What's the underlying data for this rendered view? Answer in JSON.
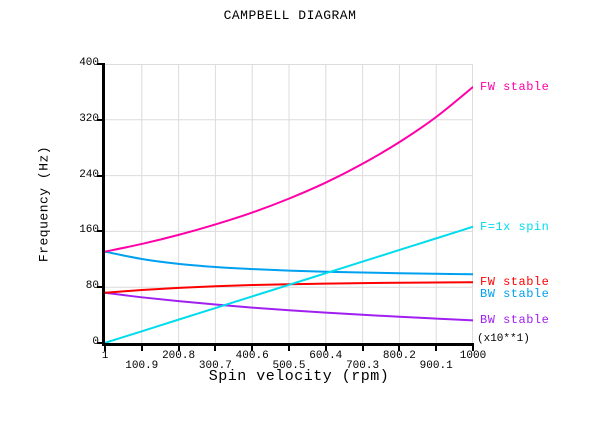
{
  "title": "CAMPBELL DIAGRAM",
  "chart_data": {
    "type": "line",
    "title": "CAMPBELL DIAGRAM",
    "xlabel": "Spin velocity (rpm)",
    "ylabel": "Frequency (Hz)",
    "x_multiplier_note": "(x10**1)",
    "xlim": [
      1,
      1000
    ],
    "ylim": [
      0,
      400
    ],
    "grid": true,
    "grid_color": "#dcdcdc",
    "legend_position": "right",
    "x_ticks": [
      "1",
      "100.9",
      "200.8",
      "300.7",
      "400.6",
      "500.5",
      "600.4",
      "700.3",
      "800.2",
      "900.1",
      "1000"
    ],
    "y_ticks": [
      "0",
      "80",
      "160",
      "240",
      "320",
      "400"
    ],
    "x": [
      1,
      100.9,
      200.8,
      300.7,
      400.6,
      500.5,
      600.4,
      700.3,
      800.2,
      900.1,
      1000
    ],
    "series": [
      {
        "name": "FW stable",
        "color": "#ff00a8",
        "values": [
          131,
          142,
          155,
          170,
          187,
          207,
          230,
          257,
          288,
          324,
          367
        ]
      },
      {
        "name": "F=1x spin",
        "color": "#00dcec",
        "values": [
          0.2,
          16.8,
          33.5,
          50.1,
          66.8,
          83.4,
          100.1,
          116.7,
          133.4,
          150.0,
          166.7
        ]
      },
      {
        "name": "FW stable",
        "color": "#ff0000",
        "values": [
          72,
          76,
          79,
          81.3,
          83.1,
          84.3,
          85.2,
          85.9,
          86.4,
          86.8,
          87.1
        ]
      },
      {
        "name": "BW stable",
        "color": "#00a0f0",
        "values": [
          131,
          120.5,
          113.5,
          109,
          106,
          103.8,
          102.2,
          101,
          100,
          99.2,
          98.5
        ]
      },
      {
        "name": "BW stable",
        "color": "#a020f0",
        "values": [
          72,
          65.5,
          60,
          55.2,
          50.8,
          47,
          43.6,
          40.5,
          37.6,
          35,
          32.5
        ]
      }
    ]
  }
}
